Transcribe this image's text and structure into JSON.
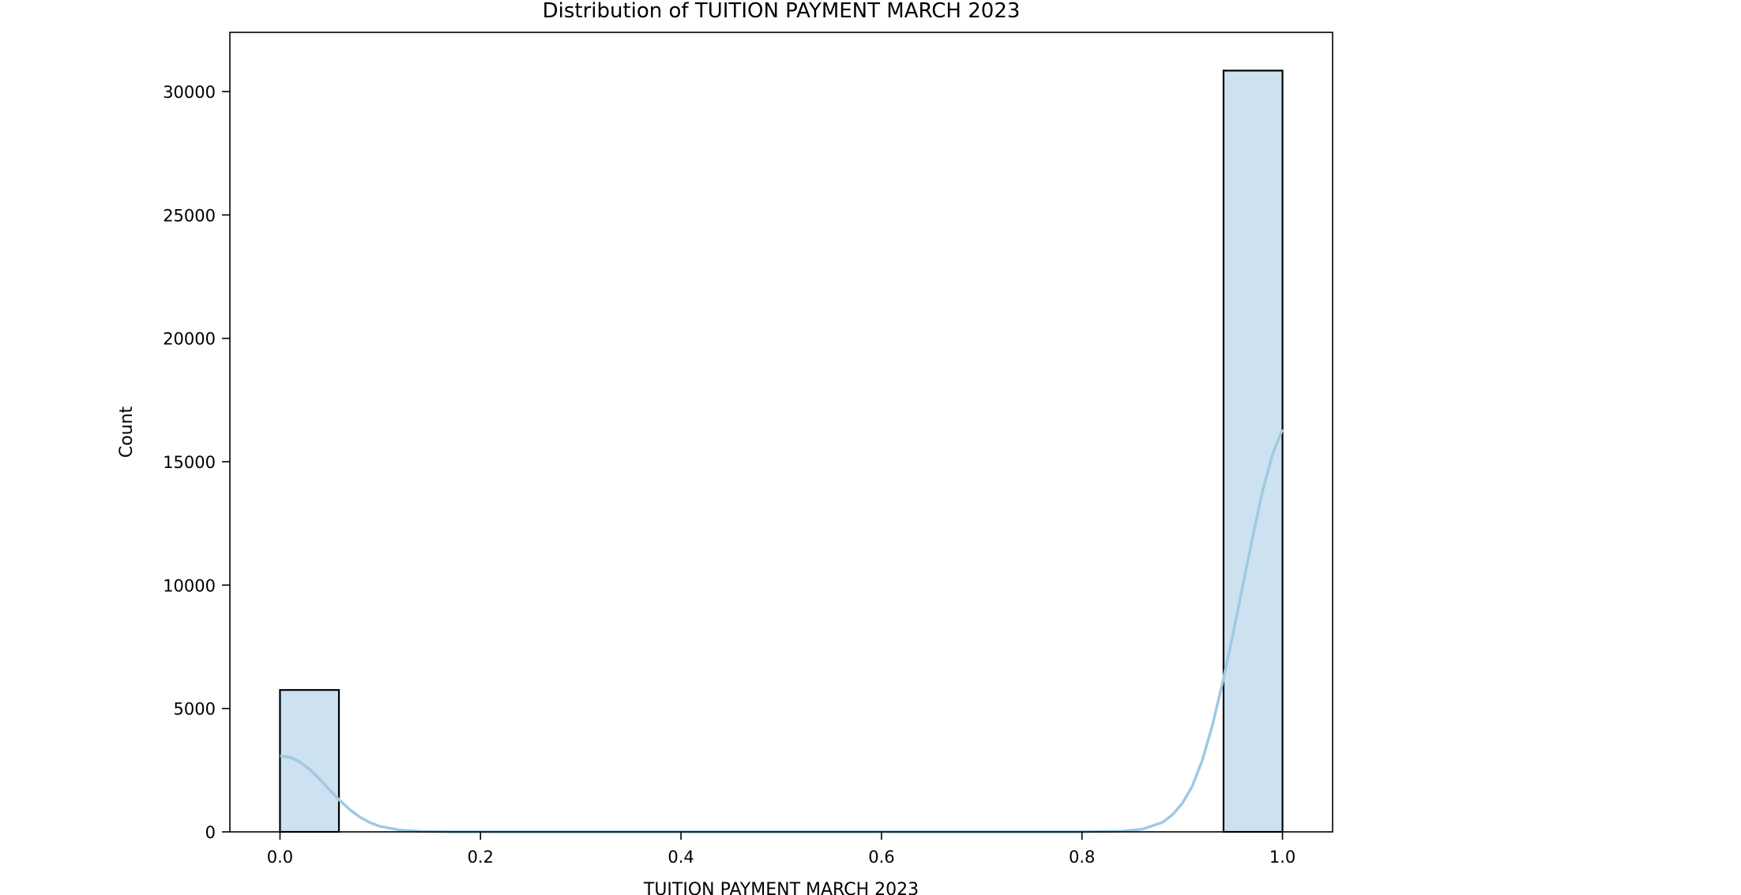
{
  "chart_data": {
    "type": "bar",
    "title": "Distribution of TUITION PAYMENT MARCH 2023",
    "xlabel": "TUITION PAYMENT MARCH 2023",
    "ylabel": "Count",
    "xlim": [
      -0.05,
      1.05
    ],
    "ylim": [
      0,
      32400
    ],
    "x_ticks": [
      "0.0",
      "0.2",
      "0.4",
      "0.6",
      "0.8",
      "1.0"
    ],
    "y_ticks": [
      "0",
      "5000",
      "10000",
      "15000",
      "20000",
      "25000",
      "30000"
    ],
    "bins": [
      {
        "x0": 0.0,
        "x1": 0.0588,
        "count": 5750
      },
      {
        "x0": 0.9412,
        "x1": 1.0,
        "count": 30850
      }
    ],
    "kde": [
      {
        "x": 0.0,
        "y": 3080
      },
      {
        "x": 0.01,
        "y": 3020
      },
      {
        "x": 0.02,
        "y": 2830
      },
      {
        "x": 0.03,
        "y": 2520
      },
      {
        "x": 0.04,
        "y": 2120
      },
      {
        "x": 0.05,
        "y": 1680
      },
      {
        "x": 0.06,
        "y": 1260
      },
      {
        "x": 0.07,
        "y": 890
      },
      {
        "x": 0.08,
        "y": 590
      },
      {
        "x": 0.09,
        "y": 370
      },
      {
        "x": 0.1,
        "y": 220
      },
      {
        "x": 0.12,
        "y": 70
      },
      {
        "x": 0.14,
        "y": 20
      },
      {
        "x": 0.17,
        "y": 0
      },
      {
        "x": 0.8,
        "y": 0
      },
      {
        "x": 0.84,
        "y": 30
      },
      {
        "x": 0.86,
        "y": 110
      },
      {
        "x": 0.88,
        "y": 380
      },
      {
        "x": 0.89,
        "y": 680
      },
      {
        "x": 0.9,
        "y": 1150
      },
      {
        "x": 0.91,
        "y": 1850
      },
      {
        "x": 0.92,
        "y": 2900
      },
      {
        "x": 0.93,
        "y": 4300
      },
      {
        "x": 0.94,
        "y": 6000
      },
      {
        "x": 0.95,
        "y": 7900
      },
      {
        "x": 0.96,
        "y": 9900
      },
      {
        "x": 0.97,
        "y": 11900
      },
      {
        "x": 0.98,
        "y": 13800
      },
      {
        "x": 0.99,
        "y": 15300
      },
      {
        "x": 1.0,
        "y": 16300
      }
    ],
    "bar_fill": "#cce2f0",
    "bar_edge": "#000000",
    "kde_color": "#9ecae1",
    "grid": false,
    "legend": "none"
  }
}
